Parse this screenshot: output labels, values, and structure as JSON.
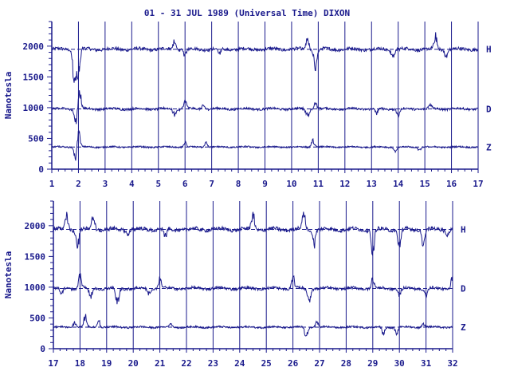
{
  "chart_data": {
    "type": "line",
    "title": "01 - 31 JUL 1989 (Universal Time) DIXON",
    "ylabel": "Nanotesla",
    "colors": {
      "trace": "#1a1a8c",
      "background": "#ffffff"
    },
    "series_labels": [
      "H",
      "D",
      "Z"
    ],
    "baselines": {
      "H": 1950,
      "D": 1000,
      "Z": 375
    },
    "grid": "vertical day lines, dashed baselines",
    "panels": [
      {
        "xlim": [
          1,
          17
        ],
        "ylim": [
          0,
          2400
        ],
        "yticks": [
          "2000",
          "1500",
          "1000",
          "500",
          "0"
        ],
        "ytick_values": [
          2000,
          1500,
          1000,
          500,
          0
        ],
        "xticks": [
          "1",
          "2",
          "3",
          "4",
          "5",
          "6",
          "7",
          "8",
          "9",
          "10",
          "11",
          "12",
          "13",
          "14",
          "15",
          "16",
          "17"
        ],
        "series": [
          {
            "name": "H",
            "base": 1950,
            "amp": 25,
            "disturbances": [
              [
                1.85,
                -600
              ],
              [
                2.0,
                -500
              ],
              [
                5.6,
                120
              ],
              [
                6.0,
                -100
              ],
              [
                7.3,
                -80
              ],
              [
                10.6,
                150
              ],
              [
                10.9,
                -250
              ],
              [
                13.8,
                -120
              ],
              [
                15.4,
                180
              ],
              [
                15.8,
                -100
              ]
            ]
          },
          {
            "name": "D",
            "base": 980,
            "amp": 18,
            "disturbances": [
              [
                1.9,
                -200
              ],
              [
                2.05,
                250
              ],
              [
                5.6,
                -80
              ],
              [
                6.0,
                120
              ],
              [
                6.7,
                60
              ],
              [
                10.6,
                -120
              ],
              [
                10.9,
                100
              ],
              [
                13.2,
                -80
              ],
              [
                14.0,
                -100
              ],
              [
                15.2,
                80
              ]
            ]
          },
          {
            "name": "Z",
            "base": 360,
            "amp": 12,
            "disturbances": [
              [
                1.9,
                -200
              ],
              [
                2.0,
                250
              ],
              [
                6.0,
                60
              ],
              [
                6.8,
                80
              ],
              [
                10.8,
                100
              ],
              [
                13.9,
                -60
              ],
              [
                14.8,
                -40
              ]
            ]
          }
        ]
      },
      {
        "xlim": [
          17,
          32
        ],
        "ylim": [
          0,
          2400
        ],
        "yticks": [
          "2000",
          "1500",
          "1000",
          "500",
          "0"
        ],
        "ytick_values": [
          2000,
          1500,
          1000,
          500,
          0
        ],
        "xticks": [
          "17",
          "18",
          "19",
          "20",
          "21",
          "22",
          "23",
          "24",
          "25",
          "26",
          "27",
          "28",
          "29",
          "30",
          "31",
          "32"
        ],
        "series": [
          {
            "name": "H",
            "base": 1940,
            "amp": 30,
            "disturbances": [
              [
                17.5,
                200
              ],
              [
                17.9,
                -280
              ],
              [
                18.5,
                200
              ],
              [
                19.8,
                -60
              ],
              [
                21.2,
                -120
              ],
              [
                24.5,
                250
              ],
              [
                26.4,
                250
              ],
              [
                26.8,
                -200
              ],
              [
                29.0,
                -350
              ],
              [
                30.0,
                -280
              ],
              [
                30.9,
                -200
              ],
              [
                31.8,
                -80
              ]
            ]
          },
          {
            "name": "D",
            "base": 980,
            "amp": 22,
            "disturbances": [
              [
                17.3,
                -80
              ],
              [
                18.0,
                200
              ],
              [
                18.4,
                -150
              ],
              [
                19.4,
                -250
              ],
              [
                20.6,
                -80
              ],
              [
                21.0,
                150
              ],
              [
                26.0,
                180
              ],
              [
                26.6,
                -200
              ],
              [
                29.0,
                150
              ],
              [
                30.0,
                -100
              ],
              [
                31.0,
                -120
              ],
              [
                32.0,
                200
              ]
            ]
          },
          {
            "name": "Z",
            "base": 350,
            "amp": 14,
            "disturbances": [
              [
                17.8,
                80
              ],
              [
                18.2,
                150
              ],
              [
                18.7,
                100
              ],
              [
                21.4,
                50
              ],
              [
                26.5,
                -150
              ],
              [
                26.9,
                80
              ],
              [
                29.4,
                -100
              ],
              [
                29.9,
                -80
              ],
              [
                30.9,
                60
              ]
            ]
          }
        ]
      }
    ]
  }
}
